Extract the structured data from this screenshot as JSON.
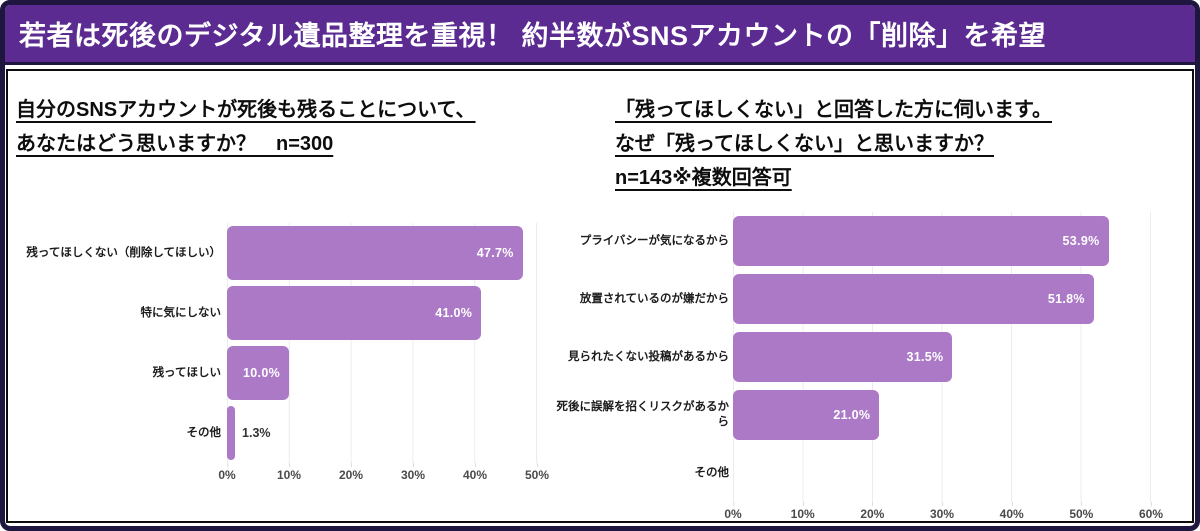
{
  "header": {
    "title": "若者は死後のデジタル遺品整理を重視！ 約半数がSNSアカウントの「削除」を希望"
  },
  "colors": {
    "frame": "#1e163f",
    "header_bg": "#5b2b92",
    "header_text": "#ffffff",
    "bar": "#ab79c6",
    "gridline": "#ececec",
    "value_inside": "#ffffff",
    "value_outside": "#333333"
  },
  "chart_data": [
    {
      "type": "bar",
      "orientation": "horizontal",
      "title_lines": [
        "自分のSNSアカウントが死後も残ることについて、",
        "あなたはどう思いますか？　n=300"
      ],
      "n": 300,
      "categories": [
        "残ってほしくない（削除してほしい）",
        "特に気にしない",
        "残ってほしい",
        "その他"
      ],
      "values": [
        47.7,
        41.0,
        10.0,
        1.3
      ],
      "value_labels": [
        "47.7%",
        "41.0%",
        "10.0%",
        "1.3%"
      ],
      "xlim": [
        0,
        50
      ],
      "tick_labels": [
        "0%",
        "10%",
        "20%",
        "30%",
        "40%",
        "50%"
      ],
      "grid": true,
      "legend": "none"
    },
    {
      "type": "bar",
      "orientation": "horizontal",
      "title_lines": [
        "「残ってほしくない」と回答した方に伺います。",
        "なぜ「残ってほしくない」と思いますか？",
        "n=143※複数回答可"
      ],
      "n": 143,
      "categories": [
        "プライバシーが気になるから",
        "放置されているのが嫌だから",
        "見られたくない投稿があるから",
        "死後に誤解を招くリスクがあるから",
        "その他"
      ],
      "values": [
        53.9,
        51.8,
        31.5,
        21.0,
        0
      ],
      "value_labels": [
        "53.9%",
        "51.8%",
        "31.5%",
        "21.0%",
        ""
      ],
      "xlim": [
        0,
        60
      ],
      "tick_labels": [
        "0%",
        "10%",
        "20%",
        "30%",
        "40%",
        "50%",
        "60%"
      ],
      "grid": true,
      "legend": "none"
    }
  ]
}
